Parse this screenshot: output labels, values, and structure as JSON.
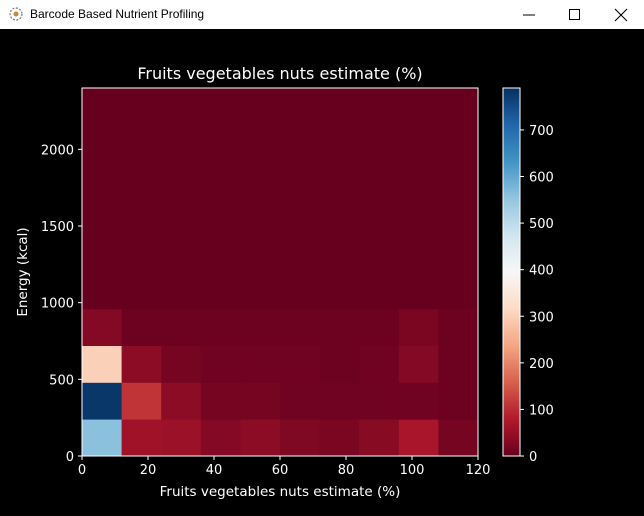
{
  "window": {
    "title": "Barcode Based Nutrient Profiling",
    "icons": {
      "app": "app-logo-icon",
      "minimize": "minimize-icon",
      "maximize": "maximize-icon",
      "close": "close-icon"
    }
  },
  "colors": {
    "background": "#000000",
    "titlebar": "#ffffff",
    "text": "#ffffff",
    "colormap": "RdBu"
  },
  "chart_data": {
    "type": "heatmap",
    "title": "Fruits vegetables nuts estimate (%)",
    "xlabel": "Fruits vegetables nuts estimate (%)",
    "ylabel": "Energy (kcal)",
    "xlim": [
      0,
      120
    ],
    "ylim": [
      0,
      2400
    ],
    "x_ticks": [
      "0",
      "20",
      "40",
      "60",
      "80",
      "100",
      "120"
    ],
    "y_ticks": [
      "0",
      "500",
      "1000",
      "1500",
      "2000"
    ],
    "x_bin_edges": [
      0,
      12,
      24,
      36,
      48,
      60,
      72,
      84,
      96,
      108,
      120
    ],
    "y_bin_edges": [
      0,
      240,
      480,
      720,
      960,
      1200,
      1440,
      1680,
      1920,
      2160,
      2400
    ],
    "values": [
      [
        560,
        60,
        55,
        30,
        40,
        25,
        20,
        35,
        70,
        15
      ],
      [
        780,
        110,
        40,
        15,
        15,
        10,
        10,
        10,
        10,
        5
      ],
      [
        300,
        40,
        15,
        10,
        10,
        10,
        5,
        10,
        30,
        5
      ],
      [
        30,
        5,
        5,
        5,
        5,
        5,
        5,
        5,
        20,
        5
      ],
      [
        0,
        0,
        0,
        0,
        0,
        0,
        0,
        0,
        0,
        0
      ],
      [
        0,
        0,
        0,
        0,
        0,
        0,
        0,
        0,
        0,
        0
      ],
      [
        0,
        0,
        0,
        0,
        0,
        0,
        0,
        0,
        0,
        0
      ],
      [
        0,
        0,
        0,
        0,
        0,
        0,
        0,
        0,
        0,
        0
      ],
      [
        0,
        0,
        0,
        0,
        0,
        0,
        0,
        0,
        0,
        0
      ],
      [
        0,
        0,
        0,
        0,
        0,
        0,
        0,
        0,
        0,
        0
      ]
    ],
    "colorbar": {
      "min": 0,
      "max": 790,
      "ticks": [
        "0",
        "100",
        "200",
        "300",
        "400",
        "500",
        "600",
        "700"
      ]
    }
  }
}
